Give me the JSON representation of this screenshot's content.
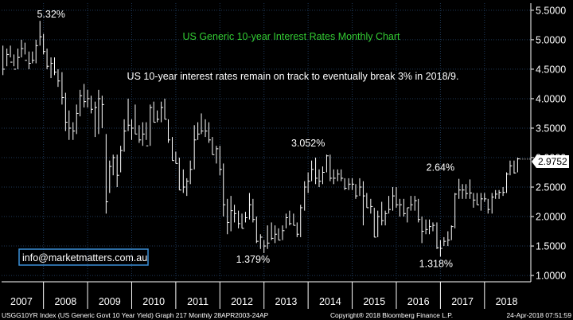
{
  "chart_data": {
    "type": "ohlc",
    "title": "US Generic 10-year Interest Rates Monthly Chart",
    "subtitle": "US 10-year interest rates remain on track to eventually break 3% in 2018/9.",
    "ylim": [
      0.92,
      5.62
    ],
    "y_ticks": [
      "5.5000",
      "5.0000",
      "4.5000",
      "4.0000",
      "3.5000",
      "3.0000",
      "2.5000",
      "2.0000",
      "1.5000",
      "1.0000"
    ],
    "y_tick_values": [
      5.5,
      5.0,
      4.5,
      4.0,
      3.5,
      3.0,
      2.5,
      2.0,
      1.5,
      1.0
    ],
    "x_ticks": [
      "2007",
      "2008",
      "2009",
      "2010",
      "2011",
      "2012",
      "2013",
      "2014",
      "2015",
      "2016",
      "2017",
      "2018"
    ],
    "x_tick_values": [
      2007.0,
      2008.0,
      2009.0,
      2010.0,
      2011.0,
      2012.0,
      2013.0,
      2014.0,
      2015.0,
      2016.0,
      2017.0,
      2018.0
    ],
    "x_range": [
      2006.55,
      2018.55
    ],
    "last_value": "2.9752",
    "last_value_num": 2.9752,
    "annotations": [
      {
        "text": "5.32%",
        "x": 2007.1,
        "y": 5.32
      },
      {
        "text": "1.379%",
        "x": 2012.25,
        "y": 1.379
      },
      {
        "text": "3.052%",
        "x": 2013.5,
        "y": 3.052
      },
      {
        "text": "2.64%",
        "x": 2016.5,
        "y": 2.64
      },
      {
        "text": "1.318%",
        "x": 2016.4,
        "y": 1.318
      }
    ],
    "series": [
      {
        "values": [
          [
            2006.58,
            4.4,
            4.9,
            4.5
          ],
          [
            2006.67,
            4.55,
            4.85,
            4.75
          ],
          [
            2006.75,
            4.7,
            4.9,
            4.62
          ],
          [
            2006.83,
            4.55,
            4.75,
            4.5
          ],
          [
            2006.92,
            4.5,
            4.85,
            4.7
          ],
          [
            2007.0,
            4.7,
            5.0,
            4.85
          ],
          [
            2007.08,
            4.75,
            4.95,
            4.65
          ],
          [
            2007.17,
            4.5,
            4.8,
            4.6
          ],
          [
            2007.25,
            4.6,
            4.8,
            4.65
          ],
          [
            2007.33,
            4.6,
            5.0,
            4.9
          ],
          [
            2007.42,
            4.9,
            5.32,
            5.05
          ],
          [
            2007.5,
            4.75,
            5.1,
            4.8
          ],
          [
            2007.58,
            4.5,
            4.85,
            4.55
          ],
          [
            2007.67,
            4.35,
            4.7,
            4.6
          ],
          [
            2007.75,
            4.4,
            4.7,
            4.45
          ],
          [
            2007.83,
            4.2,
            4.5,
            4.3
          ],
          [
            2007.92,
            3.9,
            4.45,
            4.02
          ],
          [
            2008.0,
            3.45,
            4.1,
            3.6
          ],
          [
            2008.08,
            3.3,
            3.8,
            3.5
          ],
          [
            2008.17,
            3.3,
            3.6,
            3.45
          ],
          [
            2008.25,
            3.4,
            3.9,
            3.75
          ],
          [
            2008.33,
            3.7,
            4.15,
            4.05
          ],
          [
            2008.42,
            3.85,
            4.25,
            3.95
          ],
          [
            2008.5,
            3.85,
            4.15,
            4.0
          ],
          [
            2008.58,
            3.75,
            4.05,
            3.82
          ],
          [
            2008.67,
            3.35,
            3.95,
            3.85
          ],
          [
            2008.75,
            3.4,
            4.15,
            4.0
          ],
          [
            2008.83,
            3.5,
            4.05,
            3.9
          ],
          [
            2008.92,
            2.05,
            3.4,
            2.25
          ],
          [
            2009.0,
            2.4,
            2.95,
            2.85
          ],
          [
            2009.08,
            2.7,
            3.05,
            3.0
          ],
          [
            2009.17,
            2.5,
            3.05,
            2.7
          ],
          [
            2009.25,
            2.75,
            3.2,
            3.12
          ],
          [
            2009.33,
            3.1,
            3.65,
            3.45
          ],
          [
            2009.42,
            3.45,
            4.0,
            3.55
          ],
          [
            2009.5,
            3.3,
            3.65,
            3.5
          ],
          [
            2009.58,
            3.4,
            3.9,
            3.4
          ],
          [
            2009.67,
            3.25,
            3.55,
            3.3
          ],
          [
            2009.75,
            3.2,
            3.6,
            3.4
          ],
          [
            2009.83,
            3.3,
            3.6,
            3.2
          ],
          [
            2009.92,
            3.2,
            3.9,
            3.85
          ],
          [
            2010.0,
            3.6,
            3.95,
            3.6
          ],
          [
            2010.08,
            3.6,
            3.8,
            3.65
          ],
          [
            2010.17,
            3.6,
            3.95,
            3.85
          ],
          [
            2010.25,
            3.65,
            4.0,
            3.65
          ],
          [
            2010.33,
            3.25,
            3.65,
            3.3
          ],
          [
            2010.42,
            2.95,
            3.35,
            2.95
          ],
          [
            2010.5,
            2.9,
            3.1,
            2.9
          ],
          [
            2010.58,
            2.45,
            3.0,
            2.45
          ],
          [
            2010.67,
            2.4,
            2.8,
            2.5
          ],
          [
            2010.75,
            2.35,
            2.65,
            2.6
          ],
          [
            2010.83,
            2.55,
            2.95,
            2.8
          ],
          [
            2010.92,
            2.8,
            3.55,
            3.3
          ],
          [
            2011.0,
            3.3,
            3.6,
            3.4
          ],
          [
            2011.08,
            3.4,
            3.75,
            3.45
          ],
          [
            2011.17,
            3.35,
            3.65,
            3.45
          ],
          [
            2011.25,
            3.25,
            3.6,
            3.3
          ],
          [
            2011.33,
            3.05,
            3.35,
            3.05
          ],
          [
            2011.42,
            2.9,
            3.2,
            3.15
          ],
          [
            2011.5,
            2.7,
            3.2,
            2.8
          ],
          [
            2011.58,
            2.0,
            2.9,
            2.2
          ],
          [
            2011.67,
            1.7,
            2.3,
            1.9
          ],
          [
            2011.75,
            1.75,
            2.35,
            2.1
          ],
          [
            2011.83,
            1.9,
            2.2,
            2.05
          ],
          [
            2011.92,
            1.8,
            2.1,
            1.88
          ],
          [
            2012.0,
            1.8,
            2.05,
            1.8
          ],
          [
            2012.08,
            1.9,
            2.08,
            1.98
          ],
          [
            2012.17,
            1.95,
            2.4,
            2.2
          ],
          [
            2012.25,
            1.9,
            2.3,
            1.95
          ],
          [
            2012.33,
            1.55,
            2.0,
            1.58
          ],
          [
            2012.42,
            1.45,
            1.7,
            1.65
          ],
          [
            2012.5,
            1.38,
            1.6,
            1.5
          ],
          [
            2012.58,
            1.45,
            1.85,
            1.55
          ],
          [
            2012.67,
            1.6,
            1.9,
            1.63
          ],
          [
            2012.75,
            1.55,
            1.85,
            1.7
          ],
          [
            2012.83,
            1.6,
            1.8,
            1.6
          ],
          [
            2012.92,
            1.6,
            1.85,
            1.76
          ],
          [
            2013.0,
            1.8,
            2.05,
            1.98
          ],
          [
            2013.08,
            1.85,
            2.1,
            1.88
          ],
          [
            2013.17,
            1.85,
            2.05,
            1.85
          ],
          [
            2013.25,
            1.65,
            1.9,
            1.7
          ],
          [
            2013.33,
            1.65,
            2.2,
            2.15
          ],
          [
            2013.42,
            2.1,
            2.6,
            2.5
          ],
          [
            2013.5,
            2.4,
            2.75,
            2.6
          ],
          [
            2013.58,
            2.6,
            2.95,
            2.8
          ],
          [
            2013.67,
            2.55,
            3.0,
            2.65
          ],
          [
            2013.75,
            2.5,
            2.8,
            2.6
          ],
          [
            2013.83,
            2.55,
            2.85,
            2.75
          ],
          [
            2013.92,
            2.75,
            3.05,
            3.03
          ],
          [
            2014.0,
            2.6,
            3.05,
            2.65
          ],
          [
            2014.08,
            2.55,
            2.8,
            2.65
          ],
          [
            2014.17,
            2.6,
            2.8,
            2.72
          ],
          [
            2014.25,
            2.6,
            2.8,
            2.65
          ],
          [
            2014.33,
            2.45,
            2.65,
            2.48
          ],
          [
            2014.42,
            2.45,
            2.65,
            2.55
          ],
          [
            2014.5,
            2.45,
            2.65,
            2.55
          ],
          [
            2014.58,
            2.3,
            2.55,
            2.35
          ],
          [
            2014.67,
            2.35,
            2.65,
            2.5
          ],
          [
            2014.75,
            1.85,
            2.6,
            2.35
          ],
          [
            2014.83,
            2.15,
            2.4,
            2.15
          ],
          [
            2014.92,
            2.05,
            2.3,
            2.17
          ],
          [
            2015.0,
            1.65,
            2.15,
            1.65
          ],
          [
            2015.08,
            1.65,
            2.1,
            2.0
          ],
          [
            2015.17,
            1.85,
            2.25,
            1.93
          ],
          [
            2015.25,
            1.85,
            2.1,
            2.05
          ],
          [
            2015.33,
            2.05,
            2.35,
            2.12
          ],
          [
            2015.42,
            2.1,
            2.5,
            2.35
          ],
          [
            2015.5,
            2.15,
            2.5,
            2.2
          ],
          [
            2015.58,
            2.0,
            2.3,
            2.2
          ],
          [
            2015.67,
            2.0,
            2.3,
            2.05
          ],
          [
            2015.75,
            1.9,
            2.15,
            2.15
          ],
          [
            2015.83,
            2.1,
            2.35,
            2.2
          ],
          [
            2015.92,
            2.1,
            2.35,
            2.27
          ],
          [
            2016.0,
            1.9,
            2.3,
            1.95
          ],
          [
            2016.08,
            1.55,
            2.0,
            1.75
          ],
          [
            2016.17,
            1.7,
            1.95,
            1.78
          ],
          [
            2016.25,
            1.7,
            1.95,
            1.83
          ],
          [
            2016.33,
            1.75,
            1.9,
            1.85
          ],
          [
            2016.42,
            1.45,
            1.9,
            1.47
          ],
          [
            2016.5,
            1.32,
            1.6,
            1.46
          ],
          [
            2016.58,
            1.5,
            1.65,
            1.58
          ],
          [
            2016.67,
            1.5,
            1.75,
            1.6
          ],
          [
            2016.75,
            1.6,
            1.85,
            1.83
          ],
          [
            2016.83,
            1.8,
            2.4,
            2.38
          ],
          [
            2016.92,
            2.3,
            2.64,
            2.45
          ],
          [
            2017.0,
            2.3,
            2.55,
            2.45
          ],
          [
            2017.08,
            2.3,
            2.55,
            2.39
          ],
          [
            2017.17,
            2.3,
            2.63,
            2.4
          ],
          [
            2017.25,
            2.15,
            2.4,
            2.28
          ],
          [
            2017.33,
            2.2,
            2.4,
            2.2
          ],
          [
            2017.42,
            2.1,
            2.4,
            2.3
          ],
          [
            2017.5,
            2.25,
            2.4,
            2.3
          ],
          [
            2017.58,
            2.05,
            2.3,
            2.12
          ],
          [
            2017.67,
            2.05,
            2.4,
            2.33
          ],
          [
            2017.75,
            2.3,
            2.45,
            2.38
          ],
          [
            2017.83,
            2.3,
            2.45,
            2.41
          ],
          [
            2017.92,
            2.35,
            2.5,
            2.41
          ],
          [
            2018.0,
            2.4,
            2.75,
            2.72
          ],
          [
            2018.08,
            2.7,
            2.95,
            2.86
          ],
          [
            2018.17,
            2.73,
            2.95,
            2.74
          ],
          [
            2018.25,
            2.75,
            3.0,
            2.98
          ]
        ]
      }
    ]
  },
  "header": {
    "title": "US Generic 10-year Interest Rates Monthly Chart",
    "subtitle": "US 10-year interest rates remain on track to eventually break 3% in 2018/9."
  },
  "watermark": {
    "email": "info@marketmatters.com.au"
  },
  "footer": {
    "left": "USGG10YR Index (US Generic Govt 10 Year Yield) Graph 217  Monthly 28APR2003-24AP",
    "copyright": "Copyright® 2018 Bloomberg Finance L.P.",
    "timestamp": "24-Apr-2018 07:51:59"
  },
  "colors": {
    "background": "#000000",
    "bars": "#ffffff",
    "title": "#33cc33",
    "subtitle": "#ffffff",
    "labels": "#ffffff",
    "grid": "#1f3a5a",
    "price_box": "#ffffff",
    "footer_bg": "#000000",
    "email_border": "#3a8fd8"
  }
}
